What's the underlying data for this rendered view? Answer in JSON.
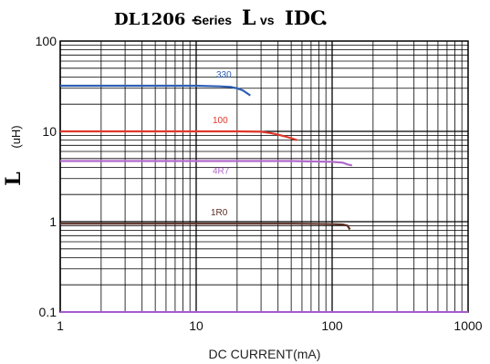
{
  "chart_data": {
    "type": "line",
    "title": {
      "part1": "DL1206 -",
      "part2": "Series",
      "part3": "L",
      "part4": "vs",
      "part5": "IDC",
      "part6": "."
    },
    "xlabel": "DC CURRENT(mA)",
    "ylabel": {
      "symbol": "L",
      "unit": "(uH)"
    },
    "x_scale": "log",
    "y_scale": "log",
    "xlim": [
      1,
      1000
    ],
    "ylim": [
      0.1,
      100
    ],
    "x_ticks": [
      "1",
      "10",
      "100",
      "1000"
    ],
    "y_ticks": [
      "100",
      "10",
      "1",
      "0.1"
    ],
    "grid": true,
    "series": [
      {
        "name": "330",
        "color": "#2e5fb3",
        "x": [
          1,
          5,
          10,
          15,
          18,
          20,
          22,
          25
        ],
        "y": [
          32,
          32,
          32,
          31.5,
          31,
          30,
          28.5,
          25
        ]
      },
      {
        "name": "100",
        "color": "#e0382b",
        "x": [
          1,
          10,
          20,
          30,
          35,
          40,
          45,
          50,
          55
        ],
        "y": [
          10,
          10,
          10,
          9.9,
          9.6,
          9.2,
          8.8,
          8.4,
          8.0
        ]
      },
      {
        "name": "4R7",
        "color": "#b06acb",
        "x": [
          1,
          10,
          50,
          100,
          120,
          130,
          140
        ],
        "y": [
          4.7,
          4.7,
          4.7,
          4.6,
          4.5,
          4.3,
          4.2
        ]
      },
      {
        "name": "1R0",
        "color": "#5a2e24",
        "x": [
          1,
          10,
          50,
          100,
          120,
          130,
          135
        ],
        "y": [
          0.95,
          0.95,
          0.95,
          0.94,
          0.93,
          0.9,
          0.82
        ]
      }
    ]
  }
}
